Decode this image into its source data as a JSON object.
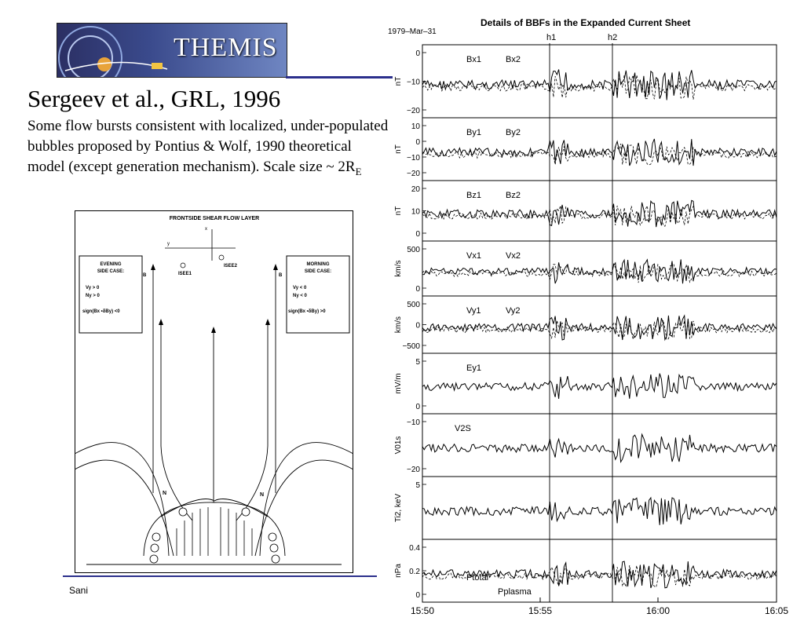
{
  "logo": {
    "text": "THEMIS"
  },
  "title": "Sergeev et al., GRL, 1996",
  "body": {
    "text": "Some flow bursts consistent with localized, under-populated bubbles proposed by Pontius & Wolf, 1990 theoretical model (except generation mechanism). Scale size ~ 2R",
    "subscript": "E"
  },
  "footer": {
    "text": "Sani"
  },
  "diagram": {
    "title": "FRONTSIDE SHEAR FLOW LAYER",
    "axis_x": "x",
    "axis_y": "y",
    "isee1": "ISEE1",
    "isee2": "ISEE2",
    "evening": {
      "line1": "EVENING",
      "line2": "SIDE CASE:",
      "c1": "Vy > 0",
      "c2": "Ny > 0",
      "c3": "sign(Bx  •δBy) <0"
    },
    "morning": {
      "line1": "MORNING",
      "line2": "SIDE CASE:",
      "c1": "Vy < 0",
      "c2": "Ny < 0",
      "c3": "sign(Bx  •δBy) >0"
    },
    "b_left": "B",
    "b_right": "B",
    "n_left": "N",
    "n_right": "N"
  },
  "plot": {
    "date": "1979–Mar–31",
    "title": "Details of BBFs in the Expanded Current Sheet",
    "h1": "h1",
    "h2": "h2",
    "time_ticks": [
      "15:50",
      "15:55",
      "16:00",
      "16:05"
    ],
    "panels": [
      {
        "unit": "nT",
        "ticks": [
          "0",
          "−10",
          "−20"
        ],
        "leg1": "Bx1",
        "leg2": "Bx2"
      },
      {
        "unit": "nT",
        "ticks": [
          "10",
          "0",
          "−10",
          "−20"
        ],
        "leg1": "By1",
        "leg2": "By2"
      },
      {
        "unit": "nT",
        "ticks": [
          "20",
          "10",
          "0"
        ],
        "leg1": "Bz1",
        "leg2": "Bz2"
      },
      {
        "unit": "km/s",
        "ticks": [
          "500",
          "0"
        ],
        "leg1": "Vx1",
        "leg2": "Vx2"
      },
      {
        "unit": "km/s",
        "ticks": [
          "500",
          "0",
          "−500"
        ],
        "leg1": "Vy1",
        "leg2": "Vy2"
      },
      {
        "unit": "mV/m",
        "ticks": [
          "5",
          "0"
        ],
        "leg1": "Ey1",
        "leg2": ""
      },
      {
        "unit": "V01s",
        "ticks": [
          "−10",
          "−20"
        ],
        "leg1": "V2S",
        "leg2": ""
      },
      {
        "unit": "Ti2, keV",
        "ticks": [
          "5"
        ],
        "leg1": "",
        "leg2": ""
      },
      {
        "unit": "nPa",
        "ticks": [
          "0.4",
          "0.2",
          "0"
        ],
        "leg1": "Ptotal",
        "leg2": "Pplasma"
      }
    ]
  }
}
